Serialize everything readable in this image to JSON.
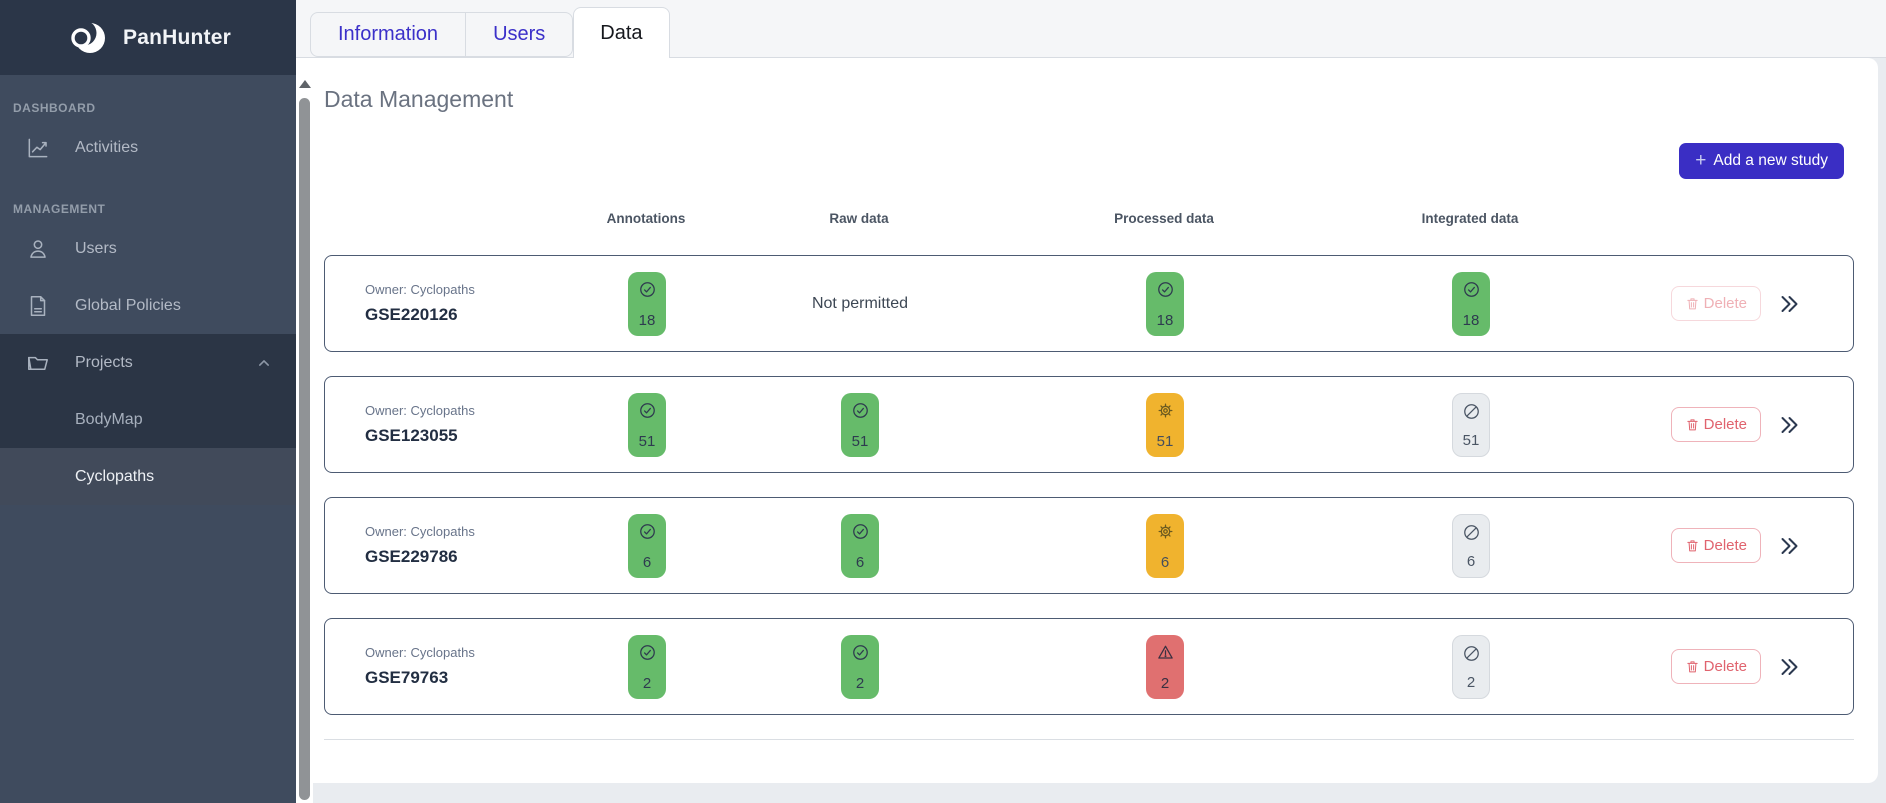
{
  "brand": {
    "name": "PanHunter",
    "logo_icon": "eclipse-logo-icon"
  },
  "sidebar": {
    "sections": [
      {
        "label": "DASHBOARD",
        "items": [
          {
            "label": "Activities",
            "icon": "line-chart-icon"
          }
        ]
      },
      {
        "label": "MANAGEMENT",
        "items": [
          {
            "label": "Users",
            "icon": "user-icon"
          },
          {
            "label": "Global Policies",
            "icon": "document-icon"
          },
          {
            "label": "Projects",
            "icon": "folder-icon",
            "expanded": true,
            "children": [
              {
                "label": "BodyMap",
                "active": false
              },
              {
                "label": "Cyclopaths",
                "active": true
              }
            ]
          }
        ]
      }
    ]
  },
  "tabs": [
    {
      "label": "Information",
      "active": false
    },
    {
      "label": "Users",
      "active": false
    },
    {
      "label": "Data",
      "active": true
    }
  ],
  "page": {
    "title": "Data Management",
    "add_button": {
      "icon": "plus-icon",
      "plus": "+",
      "label": "Add a new study"
    }
  },
  "table": {
    "columns": [
      "Annotations",
      "Raw data",
      "Processed data",
      "Integrated data"
    ],
    "delete_label": "Delete",
    "rows": [
      {
        "id": "GSE220126",
        "owner": "Owner: Cyclopaths",
        "annotations": {
          "status": "complete",
          "count": "18"
        },
        "raw": {
          "text": "Not permitted"
        },
        "processed": {
          "status": "complete",
          "count": "18"
        },
        "integrated": {
          "status": "complete",
          "count": "18"
        },
        "delete_disabled": true
      },
      {
        "id": "GSE123055",
        "owner": "Owner: Cyclopaths",
        "annotations": {
          "status": "complete",
          "count": "51"
        },
        "raw": {
          "status": "complete",
          "count": "51"
        },
        "processed": {
          "status": "processing",
          "count": "51"
        },
        "integrated": {
          "status": "disabled",
          "count": "51"
        },
        "delete_disabled": false
      },
      {
        "id": "GSE229786",
        "owner": "Owner: Cyclopaths",
        "annotations": {
          "status": "complete",
          "count": "6"
        },
        "raw": {
          "status": "complete",
          "count": "6"
        },
        "processed": {
          "status": "processing",
          "count": "6"
        },
        "integrated": {
          "status": "disabled",
          "count": "6"
        },
        "delete_disabled": false
      },
      {
        "id": "GSE79763",
        "owner": "Owner: Cyclopaths",
        "annotations": {
          "status": "complete",
          "count": "2"
        },
        "raw": {
          "status": "complete",
          "count": "2"
        },
        "processed": {
          "status": "failed",
          "count": "2"
        },
        "integrated": {
          "status": "disabled",
          "count": "2"
        },
        "delete_disabled": false
      }
    ]
  },
  "status_icons": {
    "complete": "check-circle-icon",
    "processing": "gear-icon",
    "failed": "warning-icon",
    "disabled": "slash-circle-icon"
  },
  "colors": {
    "accent": "#3a2ec4",
    "success": "#66bb6a",
    "warning": "#f0b32e",
    "danger": "#e07070",
    "badge_disabled": "#e9ecef",
    "sidebar": "#3f4b5e",
    "sidebar_header": "#2b3648",
    "tab_text": "#3b30c9"
  }
}
